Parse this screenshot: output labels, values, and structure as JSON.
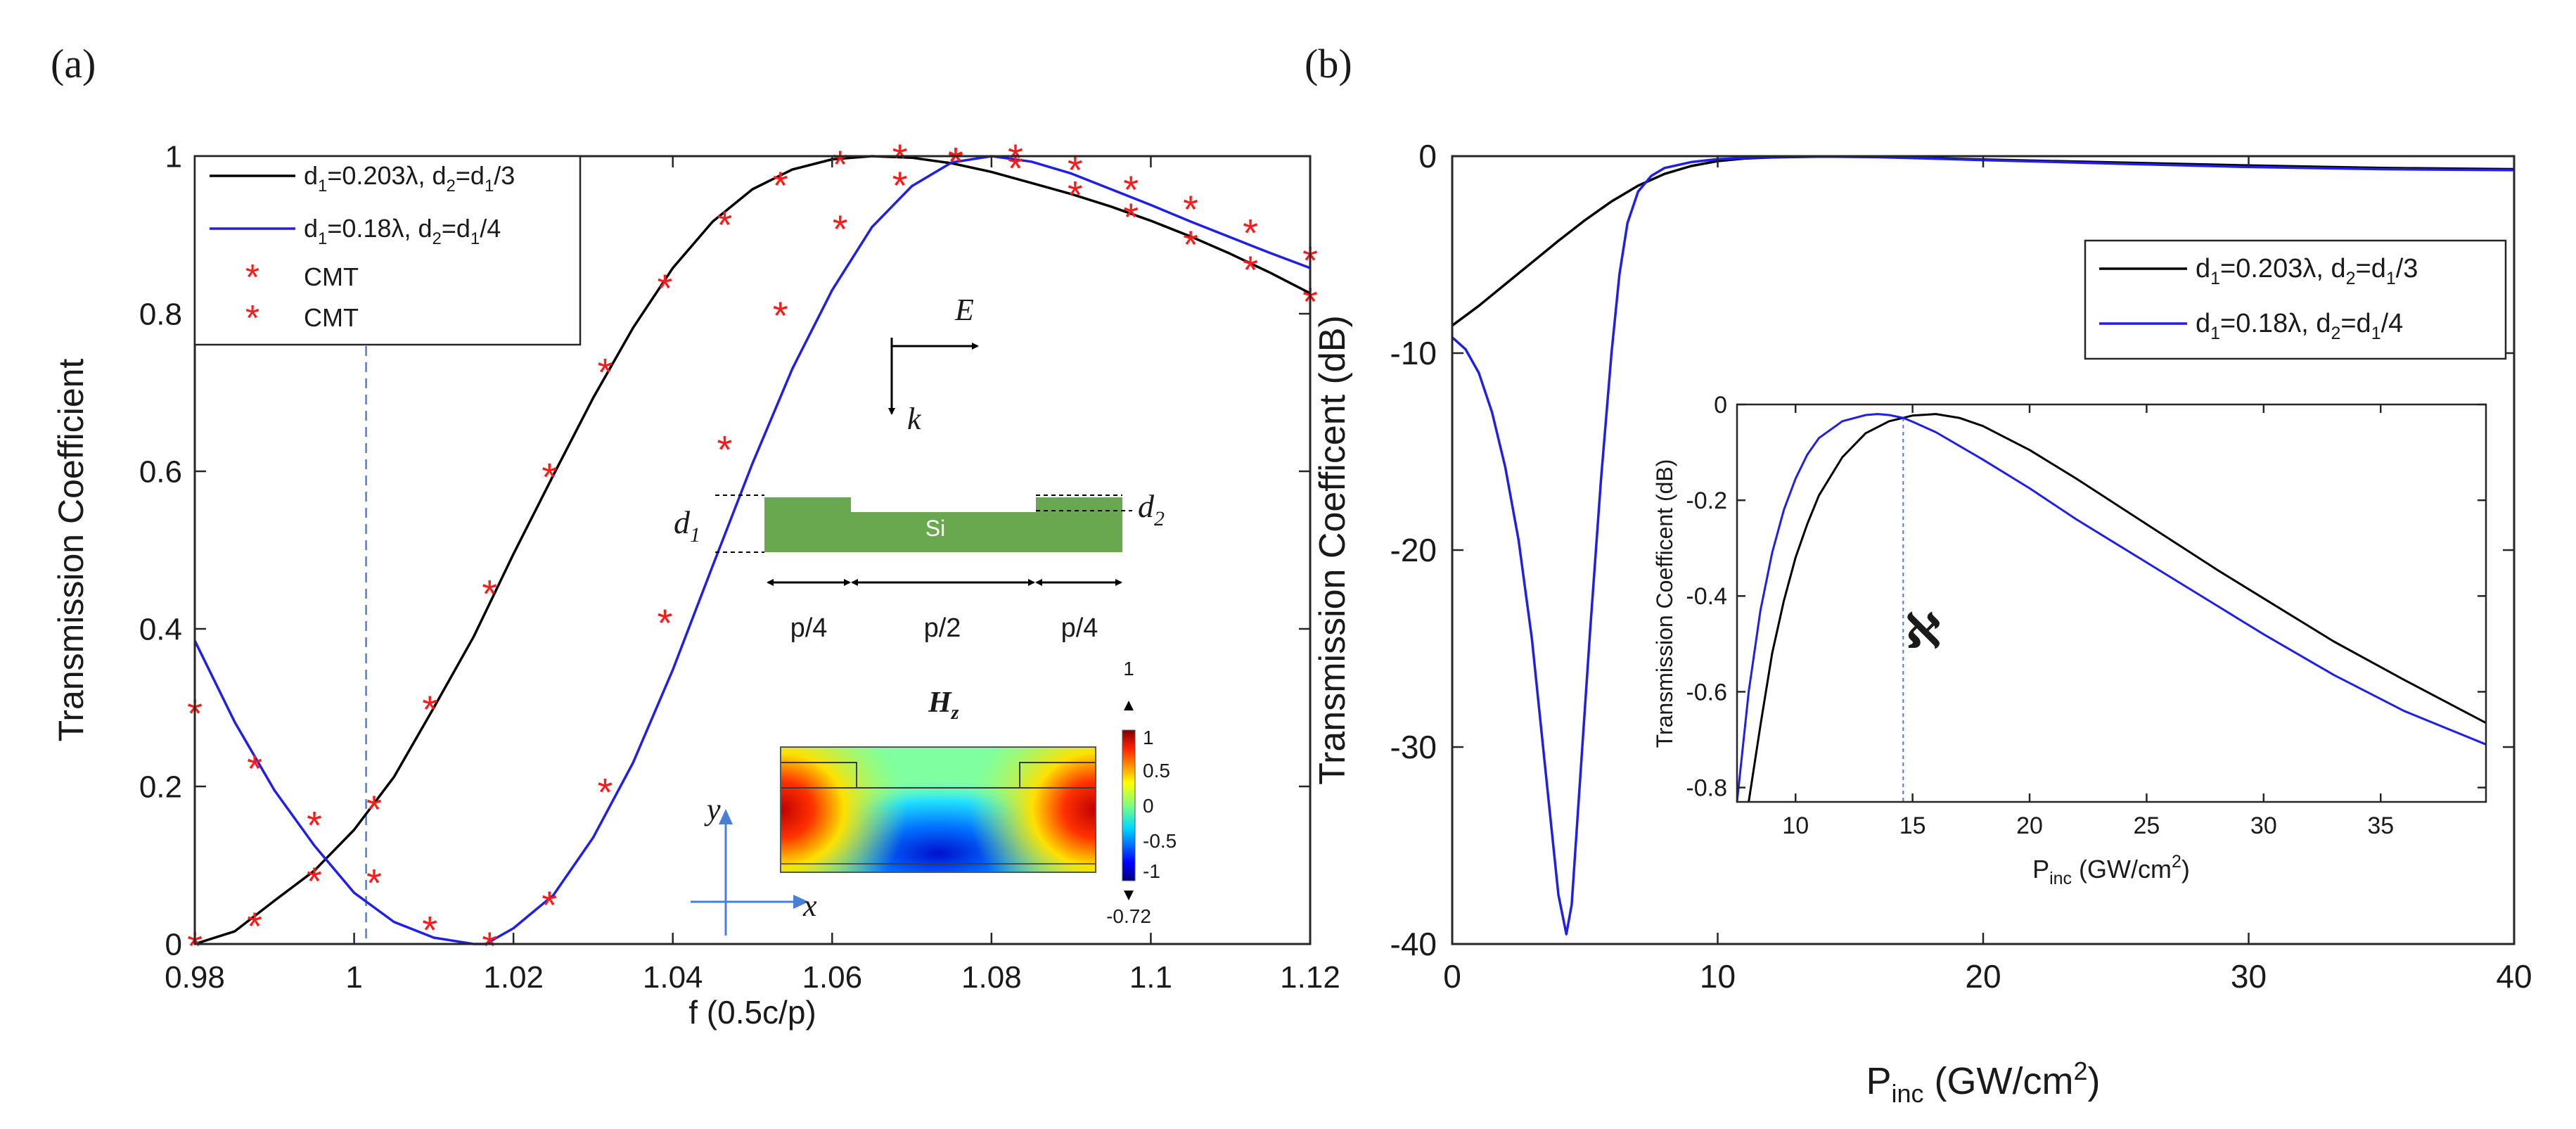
{
  "chart_data": [
    {
      "id": "a",
      "type": "line",
      "panel_label": "(a)",
      "xlabel": "f (0.5c/p)",
      "ylabel": "Transmission Coefficient",
      "xlim": [
        0.98,
        1.12
      ],
      "ylim": [
        0,
        1
      ],
      "xticks": [
        0.98,
        1,
        1.02,
        1.04,
        1.06,
        1.08,
        1.1,
        1.12
      ],
      "xtick_labels": [
        "0.98",
        "1",
        "1.02",
        "1.04",
        "1.06",
        "1.08",
        "1.1",
        "1.12"
      ],
      "yticks": [
        0,
        0.2,
        0.4,
        0.6,
        0.8,
        1
      ],
      "ytick_labels": [
        "0",
        "0.2",
        "0.4",
        "0.6",
        "0.8",
        "1"
      ],
      "grid": false,
      "legend_location": "top-left",
      "vertical_marker_x": 1.0015,
      "series": [
        {
          "name_main": "d",
          "name_sub": "1",
          "name_rest": "=0.203λ, d",
          "name_sub2": "2",
          "name_rest2": "=d",
          "name_sub3": "1",
          "name_end": "/3",
          "color": "#000000",
          "x": [
            0.98,
            0.985,
            0.99,
            0.995,
            1.0,
            1.005,
            1.01,
            1.015,
            1.02,
            1.025,
            1.03,
            1.035,
            1.04,
            1.045,
            1.05,
            1.055,
            1.06,
            1.065,
            1.07,
            1.075,
            1.08,
            1.085,
            1.09,
            1.095,
            1.1,
            1.105,
            1.11,
            1.115,
            1.12
          ],
          "y": [
            0.0,
            0.016,
            0.055,
            0.093,
            0.145,
            0.212,
            0.3,
            0.39,
            0.495,
            0.595,
            0.693,
            0.782,
            0.858,
            0.917,
            0.958,
            0.983,
            0.996,
            1.0,
            0.998,
            0.991,
            0.98,
            0.966,
            0.952,
            0.936,
            0.918,
            0.898,
            0.876,
            0.852,
            0.826
          ]
        },
        {
          "name_main": "d",
          "name_sub": "1",
          "name_rest": "=0.18λ, d",
          "name_sub2": "2",
          "name_rest2": "=d",
          "name_sub3": "1",
          "name_end": "/4",
          "color": "#1f1fe8",
          "x": [
            0.98,
            0.985,
            0.99,
            0.995,
            1.0,
            1.005,
            1.01,
            1.015,
            1.0165,
            1.02,
            1.025,
            1.03,
            1.035,
            1.04,
            1.045,
            1.05,
            1.055,
            1.06,
            1.065,
            1.07,
            1.075,
            1.08,
            1.085,
            1.09,
            1.095,
            1.1,
            1.105,
            1.11,
            1.115,
            1.12
          ],
          "y": [
            0.385,
            0.282,
            0.195,
            0.125,
            0.065,
            0.028,
            0.008,
            0.0,
            0.0,
            0.02,
            0.062,
            0.135,
            0.23,
            0.348,
            0.48,
            0.61,
            0.73,
            0.83,
            0.91,
            0.962,
            0.992,
            1.0,
            0.993,
            0.978,
            0.958,
            0.938,
            0.917,
            0.897,
            0.877,
            0.858
          ]
        }
      ],
      "cmt_points": [
        {
          "name": "CMT",
          "matches": "black",
          "x": [
            0.98,
            0.9875,
            0.995,
            1.0025,
            1.0095,
            1.017,
            1.0245,
            1.0315,
            1.039,
            1.0465,
            1.0535,
            1.061,
            1.0685,
            1.0755,
            1.083,
            1.0905,
            1.0975,
            1.105,
            1.1125,
            1.12
          ],
          "y": [
            0.0,
            0.025,
            0.082,
            0.173,
            0.3,
            0.447,
            0.595,
            0.728,
            0.835,
            0.915,
            0.965,
            0.992,
            1.0,
            0.996,
            0.987,
            0.953,
            0.925,
            0.89,
            0.858,
            0.818
          ]
        },
        {
          "name": "CMT",
          "matches": "blue",
          "x": [
            0.98,
            0.9875,
            0.995,
            1.0025,
            1.0095,
            1.017,
            1.0245,
            1.0315,
            1.039,
            1.0465,
            1.0535,
            1.061,
            1.0685,
            1.0755,
            1.083,
            1.0905,
            1.0975,
            1.105,
            1.1125,
            1.12
          ],
          "y": [
            0.295,
            0.225,
            0.153,
            0.08,
            0.02,
            0.0,
            0.052,
            0.195,
            0.41,
            0.63,
            0.8,
            0.91,
            0.965,
            0.995,
            1.0,
            0.985,
            0.96,
            0.935,
            0.905,
            0.87
          ]
        }
      ]
    },
    {
      "id": "b",
      "type": "line",
      "panel_label": "(b)",
      "xlabel_main": "P",
      "xlabel_sub": "inc",
      "xlabel_rest": " (GW/cm",
      "xlabel_sup": "2",
      "xlabel_end": ")",
      "ylabel": "Transmission Coefficent (dB)",
      "xlim": [
        0,
        40
      ],
      "ylim": [
        -40,
        0
      ],
      "xticks": [
        0,
        10,
        20,
        30,
        40
      ],
      "xtick_labels": [
        "0",
        "10",
        "20",
        "30",
        "40"
      ],
      "yticks": [
        -40,
        -30,
        -20,
        -10,
        0
      ],
      "ytick_labels": [
        "-40",
        "-30",
        "-20",
        "-10",
        "0"
      ],
      "grid": false,
      "legend_location": "top-right",
      "series": [
        {
          "name_main": "d",
          "name_sub": "1",
          "name_rest": "=0.203λ, d",
          "name_sub2": "2",
          "name_rest2": "=d",
          "name_sub3": "1",
          "name_end": "/3",
          "color": "#000000",
          "x": [
            0,
            1,
            2,
            3,
            4,
            5,
            6,
            7,
            8,
            9,
            10,
            11,
            12,
            14,
            16,
            18,
            20,
            25,
            30,
            35,
            40
          ],
          "y": [
            -8.6,
            -7.6,
            -6.5,
            -5.4,
            -4.3,
            -3.25,
            -2.3,
            -1.5,
            -0.9,
            -0.5,
            -0.25,
            -0.12,
            -0.06,
            -0.02,
            -0.03,
            -0.1,
            -0.17,
            -0.32,
            -0.47,
            -0.6,
            -0.66
          ]
        },
        {
          "name_main": "d",
          "name_sub": "1",
          "name_rest": "=0.18λ, d",
          "name_sub2": "2",
          "name_rest2": "=d",
          "name_sub3": "1",
          "name_end": "/4",
          "color": "#1f1fe8",
          "x": [
            0,
            0.5,
            1,
            1.5,
            2,
            2.5,
            3,
            3.5,
            4,
            4.3,
            4.5,
            4.8,
            5.2,
            5.6,
            6,
            6.3,
            6.6,
            7,
            7.5,
            8,
            9,
            10,
            12,
            14,
            16,
            18,
            20,
            25,
            30,
            35,
            40
          ],
          "y": [
            -9.2,
            -9.8,
            -11.0,
            -13.0,
            -15.8,
            -19.5,
            -24.5,
            -31.0,
            -37.5,
            -39.5,
            -38.0,
            -32.0,
            -24.0,
            -16.5,
            -10.0,
            -6.0,
            -3.4,
            -1.8,
            -1.0,
            -0.6,
            -0.3,
            -0.15,
            -0.04,
            -0.02,
            -0.05,
            -0.12,
            -0.2,
            -0.38,
            -0.55,
            -0.66,
            -0.71
          ]
        }
      ],
      "inset": {
        "xlabel_main": "P",
        "xlabel_sub": "inc",
        "xlabel_rest": " (GW/cm",
        "xlabel_sup": "2",
        "xlabel_end": ")",
        "ylabel": "Transmission Coefficent (dB)",
        "xlim": [
          7.5,
          39.5
        ],
        "ylim": [
          -0.83,
          0
        ],
        "xticks": [
          10,
          15,
          20,
          25,
          30,
          35
        ],
        "xtick_labels": [
          "10",
          "15",
          "20",
          "25",
          "30",
          "35"
        ],
        "yticks": [
          -0.8,
          -0.6,
          -0.4,
          -0.2,
          0
        ],
        "ytick_labels": [
          "-0.8",
          "-0.6",
          "-0.4",
          "-0.2",
          "0"
        ],
        "marker_x": 14.6,
        "annotation": "ℵ",
        "series": [
          {
            "color": "#000000",
            "x": [
              8.0,
              8.5,
              9,
              9.5,
              10,
              10.5,
              11,
              12,
              13,
              14,
              14.6,
              15,
              16,
              17,
              18,
              20,
              22,
              25,
              28,
              30,
              33,
              36,
              39.5
            ],
            "y": [
              -0.83,
              -0.67,
              -0.52,
              -0.41,
              -0.32,
              -0.25,
              -0.19,
              -0.11,
              -0.06,
              -0.035,
              -0.028,
              -0.023,
              -0.02,
              -0.028,
              -0.045,
              -0.095,
              -0.155,
              -0.25,
              -0.345,
              -0.405,
              -0.495,
              -0.575,
              -0.665
            ]
          },
          {
            "color": "#1f1fe8",
            "x": [
              7.5,
              8,
              8.5,
              9,
              9.5,
              10,
              10.5,
              11,
              12,
              13,
              13.5,
              14,
              14.6,
              15,
              16,
              18,
              20,
              22,
              25,
              28,
              30,
              33,
              36,
              39.5
            ],
            "y": [
              -0.83,
              -0.6,
              -0.43,
              -0.31,
              -0.22,
              -0.155,
              -0.105,
              -0.07,
              -0.035,
              -0.022,
              -0.02,
              -0.022,
              -0.028,
              -0.036,
              -0.058,
              -0.115,
              -0.175,
              -0.24,
              -0.33,
              -0.42,
              -0.48,
              -0.565,
              -0.64,
              -0.71
            ]
          }
        ]
      }
    }
  ],
  "diagram": {
    "e_label": "E",
    "k_label": "k",
    "d1_main": "d",
    "d1_sub": "1",
    "d2_main": "d",
    "d2_sub": "2",
    "material": "Si",
    "period_labels": [
      "p/4",
      "p/2",
      "p/4"
    ],
    "field_title_main": "H",
    "field_title_sub": "z",
    "colorbar_top": "1",
    "colorbar_ticks": [
      "1",
      "0.5",
      "0",
      "-0.5",
      "-1"
    ],
    "colorbar_bottom": "-0.72",
    "axis_y": "y",
    "axis_x": "x",
    "material_color": "#6aa84f"
  }
}
